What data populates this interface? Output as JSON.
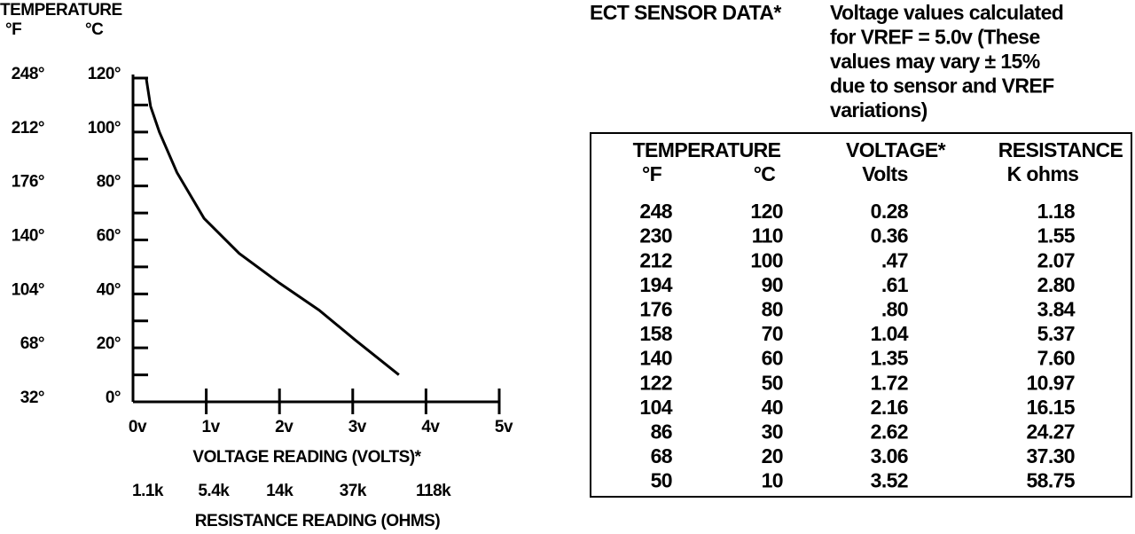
{
  "chart_data": {
    "type": "line",
    "header": "TEMPERATURE",
    "y2_label": "°F",
    "y_label": "°C",
    "xlabel": "VOLTAGE READING (VOLTS)*",
    "x2label": "RESISTANCE READING (OHMS)",
    "x": [
      0,
      0.18,
      0.24,
      0.36,
      0.6,
      0.97,
      1.45,
      2.0,
      2.54,
      3.03,
      3.63
    ],
    "values": [
      120,
      120,
      109.5,
      100,
      85,
      68,
      55,
      44,
      34,
      23,
      10
    ],
    "color": "#000000",
    "xlim": [
      0,
      5
    ],
    "xticks": [
      {
        "value": 0,
        "label": "0v"
      },
      {
        "value": 1,
        "label": "1v"
      },
      {
        "value": 2,
        "label": "2v"
      },
      {
        "value": 3,
        "label": "3v"
      },
      {
        "value": 4,
        "label": "4v"
      },
      {
        "value": 5,
        "label": "5v"
      }
    ],
    "x2ticks": [
      {
        "value": 0.2,
        "label": "1.1k"
      },
      {
        "value": 1.1,
        "label": "5.4k"
      },
      {
        "value": 2.0,
        "label": "14k"
      },
      {
        "value": 3.0,
        "label": "37k"
      },
      {
        "value": 4.1,
        "label": "118k"
      }
    ],
    "ylim": [
      0,
      120
    ],
    "yticks": [
      {
        "value": 0,
        "label": "0°"
      },
      {
        "value": 20,
        "label": "20°"
      },
      {
        "value": 40,
        "label": "40°"
      },
      {
        "value": 60,
        "label": "60°"
      },
      {
        "value": 80,
        "label": "80°"
      },
      {
        "value": 100,
        "label": "100°"
      },
      {
        "value": 120,
        "label": "120°"
      }
    ],
    "yminorticks": [
      10,
      30,
      50,
      70,
      90,
      110
    ],
    "y2lim": [
      32,
      248
    ],
    "y2ticks": [
      {
        "value": 32,
        "label": "32°"
      },
      {
        "value": 68,
        "label": "68°"
      },
      {
        "value": 104,
        "label": "104°"
      },
      {
        "value": 140,
        "label": "140°"
      },
      {
        "value": 176,
        "label": "176°"
      },
      {
        "value": 212,
        "label": "212°"
      },
      {
        "value": 248,
        "label": "248°"
      }
    ]
  },
  "panel": {
    "title": "ECT SENSOR DATA*",
    "note": [
      "Voltage values calculated",
      "for VREF = 5.0v (These",
      "values may vary ± 15%",
      "due to sensor and VREF",
      "variations)"
    ]
  },
  "table": {
    "header": {
      "temperature": "TEMPERATURE",
      "f": "°F",
      "c": "°C",
      "voltage": "VOLTAGE*",
      "volts": "Volts",
      "resistance": "RESISTANCE",
      "kohms": "K ohms"
    },
    "rows": [
      [
        "248",
        "120",
        "0.28",
        "1.18"
      ],
      [
        "230",
        "110",
        "0.36",
        "1.55"
      ],
      [
        "212",
        "100",
        ".47",
        "2.07"
      ],
      [
        "194",
        "90",
        ".61",
        "2.80"
      ],
      [
        "176",
        "80",
        ".80",
        "3.84"
      ],
      [
        "158",
        "70",
        "1.04",
        "5.37"
      ],
      [
        "140",
        "60",
        "1.35",
        "7.60"
      ],
      [
        "122",
        "50",
        "1.72",
        "10.97"
      ],
      [
        "104",
        "40",
        "2.16",
        "16.15"
      ],
      [
        "86",
        "30",
        "2.62",
        "24.27"
      ],
      [
        "68",
        "20",
        "3.06",
        "37.30"
      ],
      [
        "50",
        "10",
        "3.52",
        "58.75"
      ]
    ]
  }
}
